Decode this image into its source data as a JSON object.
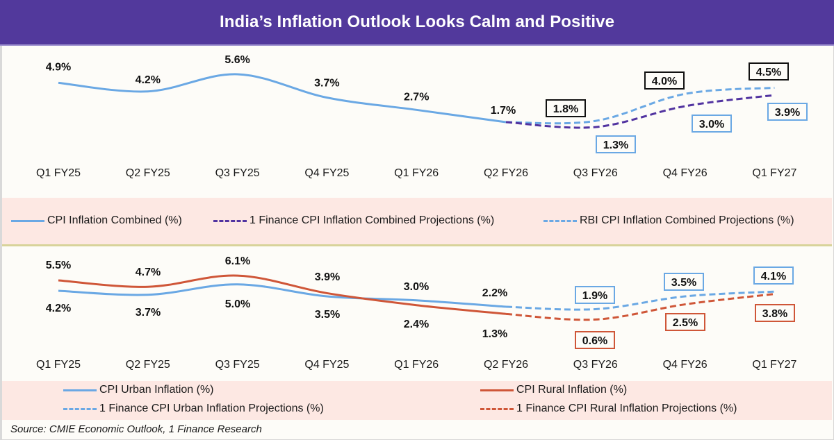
{
  "title": "India’s Inflation Outlook Looks Calm and Positive",
  "source": "Source: CMIE Economic Outlook, 1 Finance  Research",
  "colors": {
    "title_bg": "#52399c",
    "cpi_combined": "#6aa8e4",
    "one_finance_combined": "#5133a0",
    "rbi_combined": "#6aa8e4",
    "urban": "#6aa8e4",
    "rural": "#cf5638",
    "legend_bg": "#fde8e3",
    "label_box_black": "#111111",
    "label_box_blue": "#6aa8e4",
    "label_box_red": "#cf5638"
  },
  "chart_data": [
    {
      "type": "line",
      "title": "CPI Inflation Combined",
      "categories": [
        "Q1 FY25",
        "Q2 FY25",
        "Q3 FY25",
        "Q4 FY25",
        "Q1 FY26",
        "Q2 FY26",
        "Q3 FY26",
        "Q4 FY26",
        "Q1 FY27"
      ],
      "series": [
        {
          "name": "CPI Inflation Combined (%)",
          "style": "solid",
          "color_key": "cpi_combined",
          "label_box": "none",
          "label_pos": "above",
          "values": [
            4.9,
            4.2,
            5.6,
            3.7,
            2.7,
            1.7,
            null,
            null,
            null
          ]
        },
        {
          "name": "1 Finance CPI Inflation Combined Projections (%)",
          "style": "dashed",
          "color_key": "one_finance_combined",
          "label_box": "blue",
          "label_pos": "below",
          "values": [
            null,
            null,
            null,
            null,
            null,
            1.7,
            1.3,
            3.0,
            3.9
          ]
        },
        {
          "name": "RBI CPI Inflation Combined Projections (%)",
          "style": "dashed",
          "color_key": "rbi_combined",
          "label_box": "black",
          "label_pos": "above",
          "values": [
            null,
            null,
            null,
            null,
            null,
            1.7,
            1.8,
            4.0,
            4.5
          ]
        }
      ],
      "labels": [
        "4.9%",
        "4.2%",
        "5.6%",
        "3.7%",
        "2.7%",
        "1.7%"
      ],
      "one_finance_labels": [
        "1.3%",
        "3.0%",
        "3.9%"
      ],
      "rbi_labels": [
        "1.8%",
        "4.0%",
        "4.5%"
      ],
      "xlabel": "",
      "ylabel": "",
      "ylim": [
        0,
        6
      ],
      "grid": false,
      "legend": "bottom"
    },
    {
      "type": "line",
      "title": "CPI Urban vs Rural Inflation",
      "categories": [
        "Q1 FY25",
        "Q2 FY25",
        "Q3 FY25",
        "Q4 FY25",
        "Q1 FY26",
        "Q2 FY26",
        "Q3 FY26",
        "Q4 FY26",
        "Q1 FY27"
      ],
      "series": [
        {
          "name": "CPI Urban Inflation (%)",
          "style": "solid",
          "color_key": "urban",
          "values": [
            4.2,
            3.7,
            5.0,
            3.5,
            3.0,
            2.2,
            null,
            null,
            null
          ],
          "labels": [
            "4.2%",
            "3.7%",
            "5.0%",
            "3.5%",
            "3.0%",
            "2.2%"
          ]
        },
        {
          "name": "CPI Rural Inflation (%)",
          "style": "solid",
          "color_key": "rural",
          "values": [
            5.5,
            4.7,
            6.1,
            3.9,
            2.4,
            1.3,
            null,
            null,
            null
          ],
          "labels": [
            "5.5%",
            "4.7%",
            "6.1%",
            "3.9%",
            "2.4%",
            "1.3%"
          ]
        },
        {
          "name": "1 Finance CPI Urban Inflation Projections (%)",
          "style": "dashed",
          "color_key": "urban",
          "values": [
            null,
            null,
            null,
            null,
            null,
            2.2,
            1.9,
            3.5,
            4.1
          ],
          "labels": [
            "1.9%",
            "3.5%",
            "4.1%"
          ]
        },
        {
          "name": "1 Finance CPI Rural Inflation Projections (%)",
          "style": "dashed",
          "color_key": "rural",
          "values": [
            null,
            null,
            null,
            null,
            null,
            1.3,
            0.6,
            2.5,
            3.8
          ],
          "labels": [
            "0.6%",
            "2.5%",
            "3.8%"
          ]
        }
      ],
      "xlabel": "",
      "ylabel": "",
      "ylim": [
        0,
        7
      ],
      "grid": false,
      "legend": "bottom"
    }
  ],
  "legend_top": [
    {
      "label": "CPI Inflation Combined (%)",
      "style": "solid",
      "color_key": "cpi_combined"
    },
    {
      "label": "1 Finance CPI Inflation Combined Projections (%)",
      "style": "dashed",
      "color_key": "one_finance_combined"
    },
    {
      "label": "RBI CPI Inflation Combined Projections (%)",
      "style": "dashed",
      "color_key": "rbi_combined"
    }
  ],
  "legend_bottom": [
    {
      "label": "CPI Urban Inflation (%)",
      "style": "solid",
      "color_key": "urban"
    },
    {
      "label": "CPI Rural Inflation (%)",
      "style": "solid",
      "color_key": "rural"
    },
    {
      "label": "1 Finance CPI Urban Inflation Projections (%)",
      "style": "dashed",
      "color_key": "urban"
    },
    {
      "label": "1 Finance CPI Rural Inflation Projections (%)",
      "style": "dashed",
      "color_key": "rural"
    }
  ]
}
